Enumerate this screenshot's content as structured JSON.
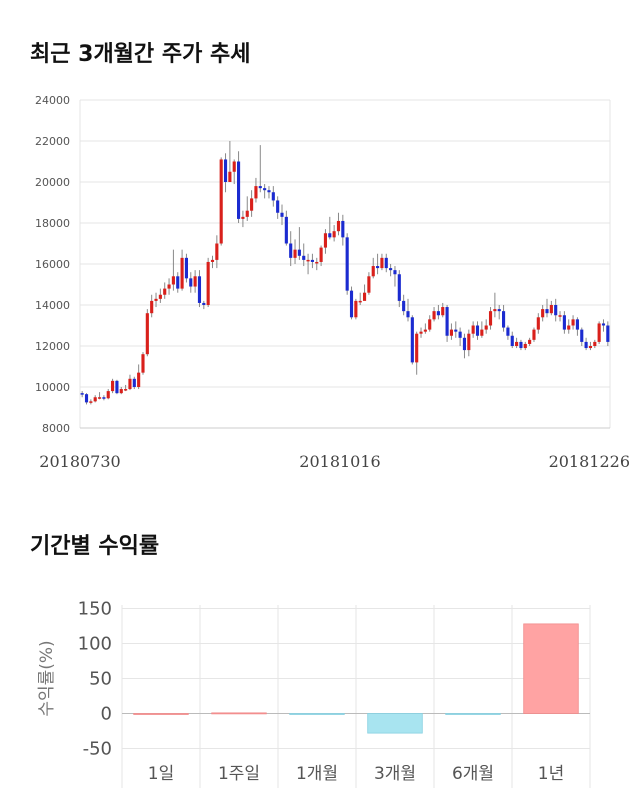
{
  "sections": {
    "price_title": "최근 3개월간 주가 추세",
    "returns_title": "기간별 수익률"
  },
  "chart_data": [
    {
      "type": "candlestick",
      "title": "최근 3개월간 주가 추세",
      "ylim": [
        8000,
        24000
      ],
      "y_ticks": [
        8000,
        10000,
        12000,
        14000,
        16000,
        18000,
        20000,
        22000,
        24000
      ],
      "x_tick_labels": [
        "20180730",
        "20181016",
        "20181226"
      ],
      "grid": true,
      "colors": {
        "up": "#d9201b",
        "down": "#1b2bd0",
        "wick": "#888888"
      },
      "candles": [
        [
          9700,
          9650,
          9800,
          9500
        ],
        [
          9650,
          9250,
          9700,
          9150
        ],
        [
          9250,
          9300,
          9400,
          9150
        ],
        [
          9300,
          9500,
          9600,
          9250
        ],
        [
          9500,
          9500,
          9750,
          9400
        ],
        [
          9500,
          9450,
          9600,
          9350
        ],
        [
          9450,
          9800,
          9900,
          9400
        ],
        [
          9800,
          10300,
          10400,
          9700
        ],
        [
          10300,
          9700,
          10350,
          9650
        ],
        [
          9700,
          9900,
          10000,
          9650
        ],
        [
          9900,
          9900,
          10100,
          9800
        ],
        [
          9900,
          10400,
          10600,
          9850
        ],
        [
          10400,
          10000,
          10500,
          9900
        ],
        [
          10000,
          10700,
          11100,
          9900
        ],
        [
          10700,
          11600,
          11700,
          10600
        ],
        [
          11600,
          13600,
          13800,
          11500
        ],
        [
          13600,
          14200,
          14500,
          13400
        ],
        [
          14200,
          14300,
          14600,
          13900
        ],
        [
          14300,
          14500,
          14800,
          14100
        ],
        [
          14500,
          14800,
          15100,
          14300
        ],
        [
          14800,
          15000,
          15300,
          14500
        ],
        [
          15000,
          15400,
          16700,
          14700
        ],
        [
          15400,
          14800,
          15600,
          14600
        ],
        [
          14800,
          16300,
          16700,
          14700
        ],
        [
          16300,
          15300,
          16500,
          15100
        ],
        [
          15300,
          14900,
          15600,
          14600
        ],
        [
          14900,
          15400,
          15700,
          14600
        ],
        [
          15400,
          14100,
          15700,
          13900
        ],
        [
          14100,
          14000,
          14200,
          13800
        ],
        [
          14000,
          16100,
          16300,
          13900
        ],
        [
          16100,
          16200,
          16400,
          15800
        ],
        [
          16200,
          17000,
          17400,
          15800
        ],
        [
          17000,
          21100,
          21200,
          16900
        ],
        [
          21100,
          20000,
          21400,
          19500
        ],
        [
          20000,
          20500,
          22000,
          20000
        ],
        [
          20500,
          21000,
          21100,
          19900
        ],
        [
          21000,
          18200,
          21500,
          18000
        ],
        [
          18200,
          18300,
          18600,
          17800
        ],
        [
          18300,
          18600,
          19300,
          18100
        ],
        [
          18600,
          19200,
          19600,
          18300
        ],
        [
          19200,
          19800,
          20200,
          19000
        ],
        [
          19800,
          19700,
          21800,
          19500
        ],
        [
          19700,
          19600,
          19900,
          19200
        ],
        [
          19600,
          19500,
          19800,
          19200
        ],
        [
          19500,
          19100,
          19800,
          18800
        ],
        [
          19100,
          18500,
          19300,
          18200
        ],
        [
          18500,
          18300,
          18900,
          17900
        ],
        [
          18300,
          17000,
          18600,
          16900
        ],
        [
          17000,
          16300,
          17600,
          15900
        ],
        [
          16300,
          16700,
          17200,
          16000
        ],
        [
          16700,
          16400,
          17800,
          16200
        ],
        [
          16400,
          16200,
          17000,
          15900
        ],
        [
          16200,
          16200,
          16500,
          15500
        ],
        [
          16200,
          16100,
          16500,
          15800
        ],
        [
          16100,
          16100,
          16300,
          15700
        ],
        [
          16100,
          16800,
          16900,
          15900
        ],
        [
          16800,
          17500,
          17700,
          16500
        ],
        [
          17500,
          17300,
          18300,
          17200
        ],
        [
          17300,
          17600,
          17900,
          17100
        ],
        [
          17600,
          18100,
          18500,
          17400
        ],
        [
          18100,
          17300,
          18400,
          16900
        ],
        [
          17300,
          14700,
          17500,
          14500
        ],
        [
          14700,
          13400,
          14900,
          13300
        ],
        [
          13400,
          14200,
          14300,
          13300
        ],
        [
          14200,
          14200,
          14600,
          14000
        ],
        [
          14200,
          14600,
          15000,
          14300
        ],
        [
          14600,
          15400,
          15600,
          14500
        ],
        [
          15400,
          15900,
          16300,
          15300
        ],
        [
          15900,
          15800,
          16500,
          15500
        ],
        [
          15800,
          16300,
          16500,
          15700
        ],
        [
          16300,
          15800,
          16500,
          15600
        ],
        [
          15800,
          15700,
          16000,
          15400
        ],
        [
          15700,
          15500,
          15900,
          14900
        ],
        [
          15500,
          14200,
          15700,
          13900
        ],
        [
          14200,
          13700,
          14500,
          13500
        ],
        [
          13700,
          13400,
          14300,
          13200
        ],
        [
          13400,
          11200,
          13500,
          11100
        ],
        [
          11200,
          12600,
          12700,
          10600
        ],
        [
          12600,
          12700,
          12900,
          12400
        ],
        [
          12700,
          12800,
          13100,
          12600
        ],
        [
          12800,
          13300,
          13500,
          12700
        ],
        [
          13300,
          13700,
          13900,
          13200
        ],
        [
          13700,
          13500,
          14000,
          13300
        ],
        [
          13500,
          13900,
          14100,
          13400
        ],
        [
          13900,
          12500,
          14000,
          12200
        ],
        [
          12500,
          12800,
          13100,
          12300
        ],
        [
          12800,
          12700,
          13200,
          12400
        ],
        [
          12700,
          12400,
          12900,
          12000
        ],
        [
          12400,
          11800,
          12600,
          11400
        ],
        [
          11800,
          12600,
          12800,
          11500
        ],
        [
          12600,
          13000,
          13200,
          12400
        ],
        [
          13000,
          12500,
          13200,
          12300
        ],
        [
          12500,
          12800,
          13200,
          12400
        ],
        [
          12800,
          13000,
          13300,
          12600
        ],
        [
          13000,
          13700,
          13900,
          12800
        ],
        [
          13700,
          13800,
          14600,
          13400
        ],
        [
          13800,
          13700,
          14000,
          13300
        ],
        [
          13700,
          12900,
          14000,
          12700
        ],
        [
          12900,
          12500,
          13000,
          12300
        ],
        [
          12500,
          12000,
          12700,
          11900
        ],
        [
          12000,
          12200,
          12400,
          11900
        ],
        [
          12200,
          11900,
          12300,
          11800
        ],
        [
          11900,
          12100,
          12200,
          11800
        ],
        [
          12100,
          12300,
          12400,
          12000
        ],
        [
          12300,
          12800,
          12900,
          12200
        ],
        [
          12800,
          13400,
          13600,
          12600
        ],
        [
          13400,
          13800,
          14000,
          13200
        ],
        [
          13800,
          13600,
          14300,
          13400
        ],
        [
          13600,
          14000,
          14200,
          13500
        ],
        [
          14000,
          13500,
          14300,
          13200
        ],
        [
          13500,
          13500,
          13700,
          13200
        ],
        [
          13500,
          12800,
          13700,
          12600
        ],
        [
          12800,
          13000,
          13300,
          12600
        ],
        [
          13000,
          13300,
          13500,
          12800
        ],
        [
          13300,
          12800,
          13400,
          12500
        ],
        [
          12800,
          12200,
          12900,
          12000
        ],
        [
          12200,
          11900,
          12400,
          11800
        ],
        [
          11900,
          12000,
          12200,
          11800
        ],
        [
          12000,
          12200,
          12300,
          11900
        ],
        [
          12200,
          13100,
          13200,
          12100
        ],
        [
          13100,
          13000,
          13300,
          12700
        ],
        [
          13000,
          12200,
          13200,
          12000
        ]
      ]
    },
    {
      "type": "bar",
      "categories": [
        "1일",
        "1주일",
        "1개월",
        "3개월",
        "6개월",
        "1년"
      ],
      "values": [
        0,
        0.9,
        -0.6,
        -28,
        -1,
        128
      ],
      "ylabel": "수익률(%)",
      "ylim": [
        -55,
        155
      ],
      "y_ticks": [
        -50,
        0,
        50,
        100,
        150
      ],
      "grid": true,
      "colors": {
        "positive": "#ffa3a3",
        "negative": "#a8e4f0"
      }
    }
  ]
}
